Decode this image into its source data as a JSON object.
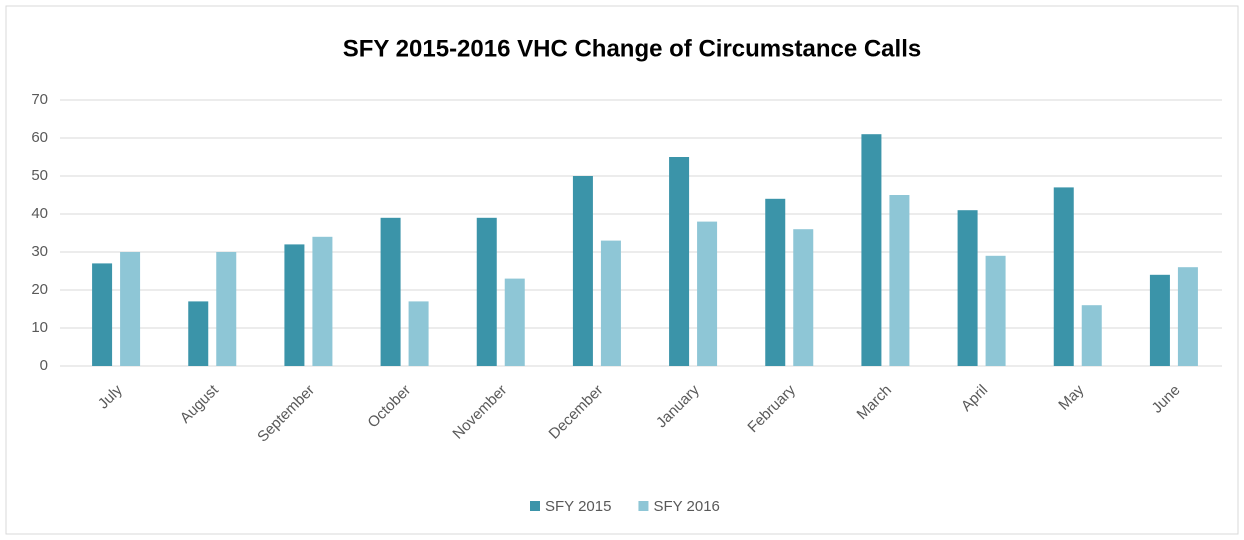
{
  "chart_data": {
    "type": "bar",
    "title": "SFY 2015-2016 VHC Change of Circumstance Calls",
    "categories": [
      "July",
      "August",
      "September",
      "October",
      "November",
      "December",
      "January",
      "February",
      "March",
      "April",
      "May",
      "June"
    ],
    "series": [
      {
        "name": "SFY 2015",
        "color": "#3b94a9",
        "values": [
          27,
          17,
          32,
          39,
          39,
          50,
          55,
          44,
          61,
          41,
          47,
          24
        ]
      },
      {
        "name": "SFY 2016",
        "color": "#8ec6d6",
        "values": [
          30,
          30,
          34,
          17,
          23,
          33,
          38,
          36,
          45,
          29,
          16,
          26
        ]
      }
    ],
    "ylim": [
      0,
      70
    ],
    "yticks": [
      0,
      10,
      20,
      30,
      40,
      50,
      60,
      70
    ],
    "grid": true,
    "legend": "bottom"
  }
}
